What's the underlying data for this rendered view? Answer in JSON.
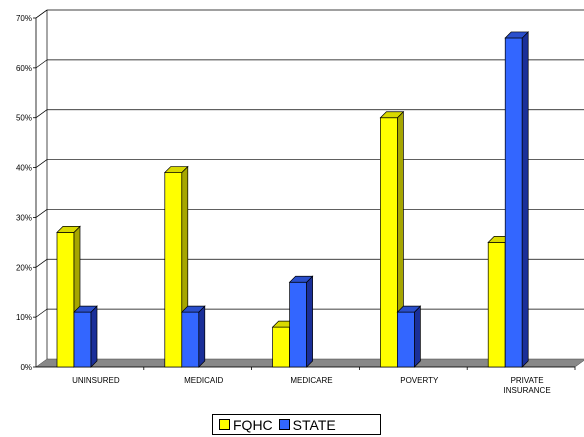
{
  "chart_data": {
    "type": "bar",
    "categories": [
      "UNINSURED",
      "MEDICAID",
      "MEDICARE",
      "POVERTY",
      "PRIVATE INSURANCE"
    ],
    "series": [
      {
        "name": "FQHC",
        "values": [
          27,
          39,
          8,
          50,
          25
        ],
        "color": "#ffff00"
      },
      {
        "name": "STATE",
        "values": [
          11,
          11,
          17,
          11,
          66
        ],
        "color": "#3366ff"
      }
    ],
    "ylim": [
      0,
      70
    ],
    "yticks": [
      "0%",
      "10%",
      "20%",
      "30%",
      "40%",
      "50%",
      "60%",
      "70%"
    ],
    "grid": true,
    "legend_position": "bottom-center",
    "title": "",
    "xlabel": "",
    "ylabel": ""
  }
}
